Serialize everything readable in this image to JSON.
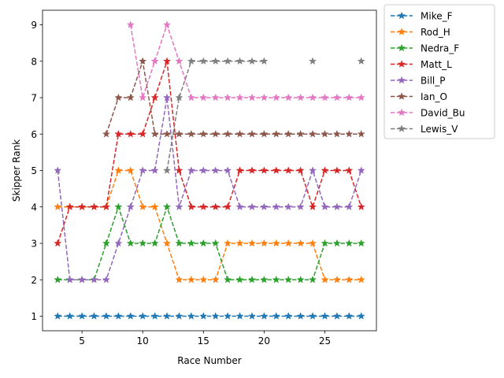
{
  "chart_data": {
    "type": "line",
    "xlabel": "Race Number",
    "ylabel": "Skipper Rank",
    "xlim": [
      1.75,
      29.25
    ],
    "ylim": [
      0.6,
      9.4
    ],
    "xticks": [
      5,
      10,
      15,
      20,
      25
    ],
    "yticks": [
      1,
      2,
      3,
      4,
      5,
      6,
      7,
      8,
      9
    ],
    "grid": false,
    "legend_position": "outside-top-right",
    "line_style": "dashed",
    "marker": "star",
    "x": [
      3,
      4,
      5,
      6,
      7,
      8,
      9,
      10,
      11,
      12,
      13,
      14,
      15,
      16,
      17,
      18,
      19,
      20,
      21,
      22,
      23,
      24,
      25,
      26,
      27,
      28
    ],
    "series": [
      {
        "name": "Mike_F",
        "color": "#1f77b4",
        "values": [
          1,
          1,
          1,
          1,
          1,
          1,
          1,
          1,
          1,
          1,
          1,
          1,
          1,
          1,
          1,
          1,
          1,
          1,
          1,
          1,
          1,
          1,
          1,
          1,
          1,
          1
        ]
      },
      {
        "name": "Rod_H",
        "color": "#ff7f0e",
        "values": [
          4,
          4,
          4,
          4,
          4,
          5,
          5,
          4,
          4,
          3,
          2,
          2,
          2,
          2,
          3,
          3,
          3,
          3,
          3,
          3,
          3,
          3,
          2,
          2,
          2,
          2
        ]
      },
      {
        "name": "Nedra_F",
        "color": "#2ca02c",
        "values": [
          2,
          2,
          2,
          2,
          3,
          4,
          3,
          3,
          3,
          4,
          3,
          3,
          3,
          3,
          2,
          2,
          2,
          2,
          2,
          2,
          2,
          2,
          3,
          3,
          3,
          3
        ]
      },
      {
        "name": "Matt_L",
        "color": "#d62728",
        "values": [
          3,
          4,
          4,
          4,
          4,
          6,
          6,
          6,
          7,
          8,
          5,
          4,
          4,
          4,
          4,
          5,
          5,
          5,
          5,
          5,
          5,
          4,
          5,
          5,
          5,
          4
        ]
      },
      {
        "name": "Bill_P",
        "color": "#9467bd",
        "values": [
          5,
          2,
          2,
          2,
          2,
          3,
          4,
          5,
          5,
          7,
          4,
          5,
          5,
          5,
          5,
          4,
          4,
          4,
          4,
          4,
          4,
          5,
          4,
          4,
          4,
          5
        ]
      },
      {
        "name": "Ian_O",
        "color": "#8c564b",
        "values": [
          null,
          null,
          null,
          null,
          6,
          7,
          7,
          8,
          6,
          6,
          6,
          6,
          6,
          6,
          6,
          6,
          6,
          6,
          6,
          6,
          6,
          6,
          6,
          6,
          6,
          6
        ]
      },
      {
        "name": "David_Bu",
        "color": "#e377c2",
        "values": [
          null,
          null,
          null,
          null,
          null,
          null,
          9,
          7,
          8,
          9,
          8,
          7,
          7,
          7,
          7,
          7,
          7,
          7,
          7,
          7,
          7,
          7,
          7,
          7,
          7,
          7
        ]
      },
      {
        "name": "Lewis_V",
        "color": "#7f7f7f",
        "values": [
          null,
          null,
          null,
          null,
          null,
          null,
          null,
          null,
          null,
          5,
          7,
          8,
          8,
          8,
          8,
          8,
          8,
          8,
          null,
          null,
          null,
          8,
          null,
          null,
          null,
          8
        ]
      }
    ]
  }
}
